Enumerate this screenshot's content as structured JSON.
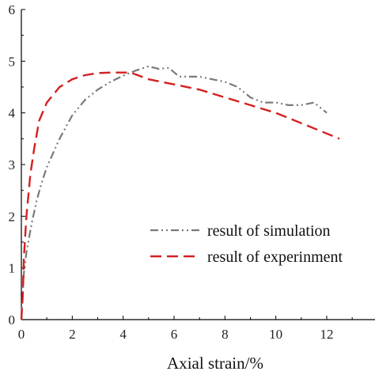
{
  "chart_data": {
    "type": "line",
    "title": "",
    "xlabel": "Axial strain/%",
    "ylabel": "",
    "xlim": [
      0,
      14
    ],
    "ylim": [
      0,
      6
    ],
    "xticks": [
      0,
      2,
      4,
      6,
      8,
      10,
      12
    ],
    "yticks": [
      0,
      1,
      2,
      3,
      4,
      5,
      6
    ],
    "grid": false,
    "legend_position": "center-right",
    "series": [
      {
        "name": "result of simulation",
        "color": "#7a7a7a",
        "style": "dash-dot-dot",
        "x": [
          0,
          0.1,
          0.2,
          0.4,
          0.6,
          0.8,
          1.0,
          1.5,
          2.0,
          2.5,
          3.0,
          3.5,
          4.0,
          4.5,
          5.0,
          5.4,
          5.8,
          6.2,
          6.6,
          7.0,
          7.5,
          8.0,
          8.5,
          9.0,
          9.5,
          10.0,
          10.5,
          11.0,
          11.5,
          12.0
        ],
        "y": [
          0,
          0.9,
          1.3,
          1.85,
          2.3,
          2.65,
          2.95,
          3.5,
          3.95,
          4.25,
          4.45,
          4.6,
          4.72,
          4.82,
          4.9,
          4.85,
          4.87,
          4.7,
          4.7,
          4.7,
          4.65,
          4.6,
          4.5,
          4.3,
          4.2,
          4.2,
          4.15,
          4.15,
          4.2,
          4.0
        ]
      },
      {
        "name": "result of experinment",
        "color": "#d42020",
        "style": "dash",
        "x": [
          0,
          0.05,
          0.1,
          0.2,
          0.35,
          0.5,
          0.7,
          1.0,
          1.5,
          2.0,
          2.5,
          3.0,
          3.5,
          4.0,
          4.3,
          5.0,
          6.0,
          7.0,
          8.0,
          9.0,
          10.0,
          11.0,
          12.0,
          12.5
        ],
        "y": [
          0,
          0.4,
          1.2,
          2.0,
          2.8,
          3.3,
          3.85,
          4.2,
          4.5,
          4.65,
          4.73,
          4.77,
          4.78,
          4.78,
          4.78,
          4.65,
          4.55,
          4.45,
          4.3,
          4.15,
          4.0,
          3.8,
          3.6,
          3.5
        ]
      }
    ]
  }
}
